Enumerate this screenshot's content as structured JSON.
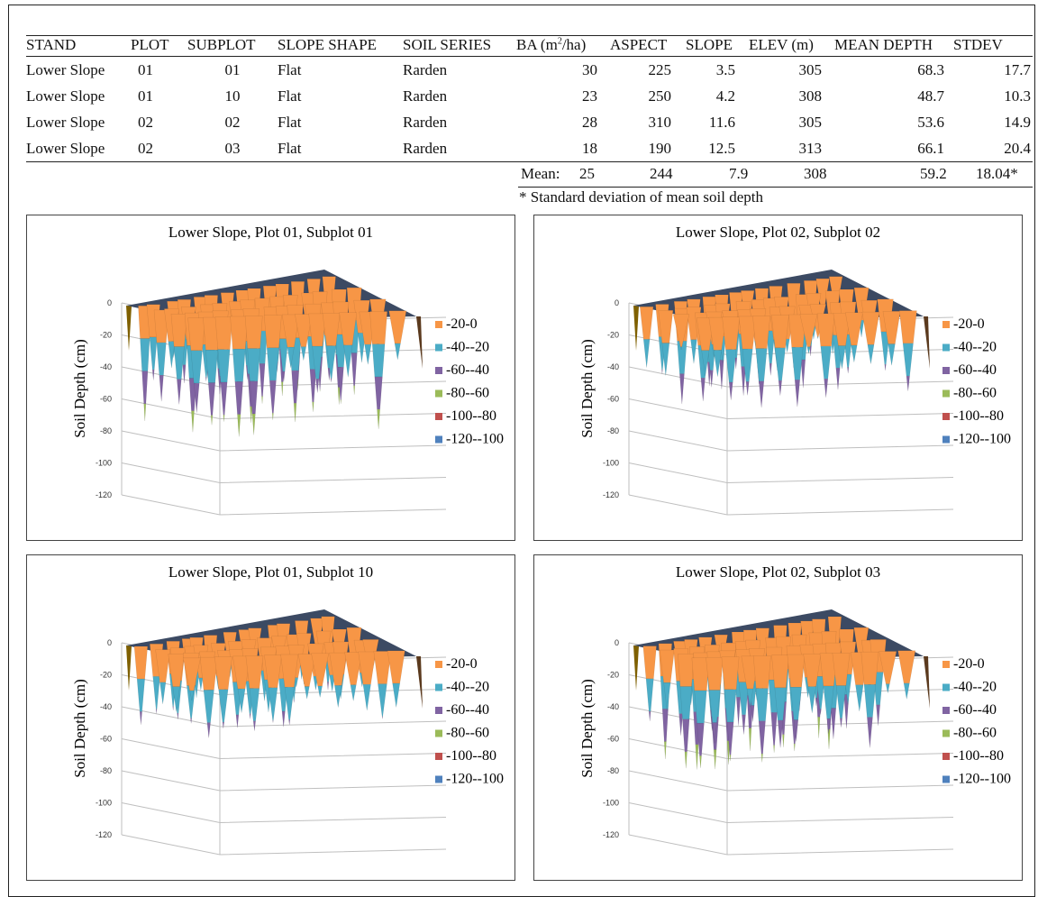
{
  "table": {
    "headers": [
      "STAND",
      "PLOT",
      "SUBPLOT",
      "SLOPE SHAPE",
      "SOIL SERIES",
      "BA (m",
      "2",
      "/ha)",
      "ASPECT",
      "SLOPE",
      "ELEV (m)",
      "MEAN DEPTH",
      "STDEV"
    ],
    "rows": [
      [
        "Lower Slope",
        "01",
        "01",
        "Flat",
        "Rarden",
        "30",
        "225",
        "3.5",
        "305",
        "68.3",
        "17.7"
      ],
      [
        "Lower Slope",
        "01",
        "10",
        "Flat",
        "Rarden",
        "23",
        "250",
        "4.2",
        "308",
        "48.7",
        "10.3"
      ],
      [
        "Lower Slope",
        "02",
        "02",
        "Flat",
        "Rarden",
        "28",
        "310",
        "11.6",
        "305",
        "53.6",
        "14.9"
      ],
      [
        "Lower Slope",
        "02",
        "03",
        "Flat",
        "Rarden",
        "18",
        "190",
        "12.5",
        "313",
        "66.1",
        "20.4"
      ]
    ],
    "mean": {
      "label": "Mean:",
      "ba": "25",
      "aspect": "244",
      "slope": "7.9",
      "elev": "308",
      "mean_depth": "59.2",
      "stdev": "18.04*"
    },
    "footnote": "* Standard deviation of mean soil depth"
  },
  "colors": {
    "band_0_20": "#f79646",
    "band_20_40": "#4bacc6",
    "band_40_60": "#8064a2",
    "band_60_80": "#9bbb59",
    "band_80_100": "#c0504d",
    "band_100_120": "#4f81bd",
    "surface": "#3c4a63"
  },
  "chart_data": [
    {
      "type": "surface-3d",
      "title": "Lower Slope, Plot 01, Subplot 01",
      "ylabel": "Soil Depth (cm)",
      "zlim": [
        -120,
        0
      ],
      "ticks": [
        "0",
        "-20",
        "-40",
        "-60",
        "-80",
        "-100",
        "-120"
      ],
      "legend": [
        "-20-0",
        "-40--20",
        "-60--40",
        "-80--60",
        "-100--80",
        "-120--100"
      ],
      "mean_depth": 68.3,
      "stdev": 17.7
    },
    {
      "type": "surface-3d",
      "title": "Lower Slope, Plot 02, Subplot 02",
      "ylabel": "Soil Depth (cm)",
      "zlim": [
        -120,
        0
      ],
      "ticks": [
        "0",
        "-20",
        "-40",
        "-60",
        "-80",
        "-100",
        "-120"
      ],
      "legend": [
        "-20-0",
        "-40--20",
        "-60--40",
        "-80--60",
        "-100--80",
        "-120--100"
      ],
      "mean_depth": 53.6,
      "stdev": 14.9
    },
    {
      "type": "surface-3d",
      "title": "Lower Slope, Plot 01, Subplot 10",
      "ylabel": "Soil Depth (cm)",
      "zlim": [
        -120,
        0
      ],
      "ticks": [
        "0",
        "-20",
        "-40",
        "-60",
        "-80",
        "-100",
        "-120"
      ],
      "legend": [
        "-20-0",
        "-40--20",
        "-60--40",
        "-80--60",
        "-100--80",
        "-120--100"
      ],
      "mean_depth": 48.7,
      "stdev": 10.3
    },
    {
      "type": "surface-3d",
      "title": "Lower Slope, Plot 02, Subplot 03",
      "ylabel": "Soil Depth (cm)",
      "zlim": [
        -120,
        0
      ],
      "ticks": [
        "0",
        "-20",
        "-40",
        "-60",
        "-80",
        "-100",
        "-120"
      ],
      "legend": [
        "-20-0",
        "-40--20",
        "-60--40",
        "-80--60",
        "-100--80",
        "-120--100"
      ],
      "mean_depth": 66.1,
      "stdev": 20.4
    }
  ]
}
